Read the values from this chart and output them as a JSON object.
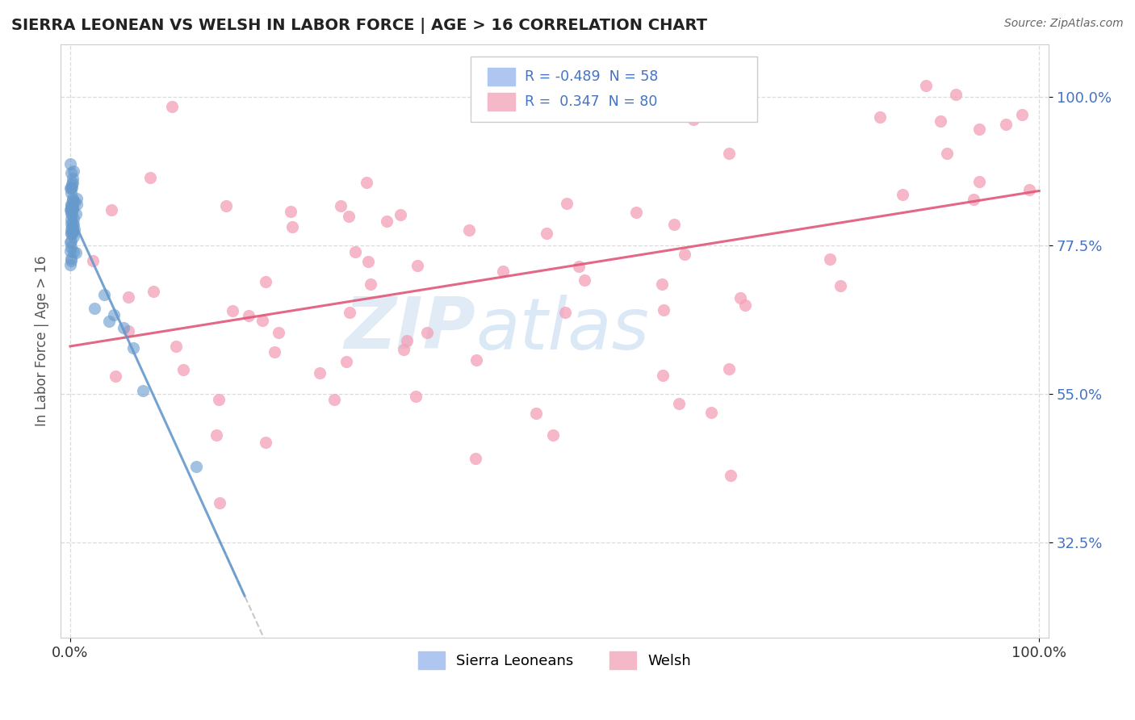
{
  "title": "SIERRA LEONEAN VS WELSH IN LABOR FORCE | AGE > 16 CORRELATION CHART",
  "source": "Source: ZipAtlas.com",
  "ylabel": "In Labor Force | Age > 16",
  "xlim": [
    -0.01,
    1.01
  ],
  "ylim": [
    0.18,
    1.08
  ],
  "ytick_vals": [
    0.325,
    0.55,
    0.775,
    1.0
  ],
  "ytick_labels": [
    "32.5%",
    "55.0%",
    "77.5%",
    "100.0%"
  ],
  "xtick_vals": [
    0.0,
    1.0
  ],
  "xtick_labels": [
    "0.0%",
    "100.0%"
  ],
  "sierra_color": "#6699cc",
  "welsh_color": "#f4a0b8",
  "trendline_welsh_color": "#e05878",
  "trendline_sierra_color": "#6699cc",
  "watermark_zip": "ZIP",
  "watermark_atlas": "atlas",
  "watermark_color_zip": "#ccdff5",
  "watermark_color_atlas": "#b8d0e8",
  "background_color": "#ffffff",
  "grid_color": "#cccccc",
  "legend_box_color": "#aec6f0",
  "legend_box_color2": "#f5b8c8",
  "legend_text_color": "#4472c4",
  "title_color": "#222222",
  "source_color": "#666666",
  "ylabel_color": "#555555",
  "ytick_color": "#4472c4",
  "xtick_color": "#333333"
}
